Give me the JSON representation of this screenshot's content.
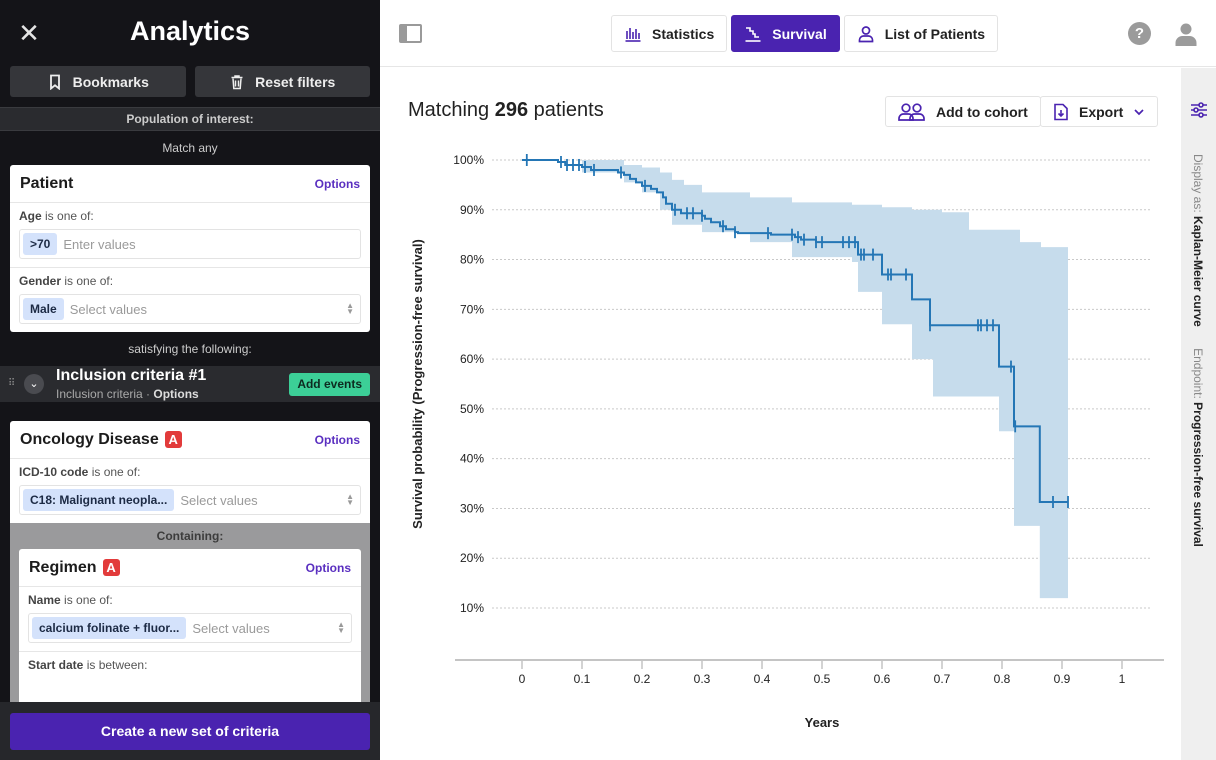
{
  "sidebar": {
    "title": "Analytics",
    "close_icon": "close-icon",
    "bookmarks_label": "Bookmarks",
    "reset_label": "Reset filters",
    "population_label": "Population of interest:",
    "match_label": "Match any",
    "patient_card": {
      "title": "Patient",
      "options": "Options",
      "age_label": "Age",
      "age_op": "is one of:",
      "age_chip": ">70",
      "age_placeholder": "Enter values",
      "gender_label": "Gender",
      "gender_op": "is one of:",
      "gender_chip": "Male",
      "gender_placeholder": "Select values"
    },
    "satisfying_label": "satisfying the following:",
    "inclusion": {
      "title": "Inclusion criteria #1",
      "subtitle": "Inclusion criteria",
      "separator": "·",
      "options": "Options",
      "add_events": "Add events"
    },
    "oncology_card": {
      "title": "Oncology Disease",
      "badge": "A",
      "options": "Options",
      "icd_label": "ICD-10 code",
      "icd_op": "is one of:",
      "icd_chip": "C18: Malignant neopla...",
      "icd_placeholder": "Select values",
      "containing": "Containing:"
    },
    "regimen_card": {
      "title": "Regimen",
      "badge": "A",
      "options": "Options",
      "name_label": "Name",
      "name_op": "is one of:",
      "name_chip": "calcium folinate + fluor...",
      "name_placeholder": "Select values",
      "start_label": "Start date",
      "start_op": "is between:"
    },
    "create_label": "Create a new set of criteria"
  },
  "topbar": {
    "tabs": [
      {
        "label": "Statistics",
        "icon": "bar-chart-icon",
        "active": false
      },
      {
        "label": "Survival",
        "icon": "survival-curve-icon",
        "active": true
      },
      {
        "label": "List of Patients",
        "icon": "person-icon",
        "active": false
      }
    ],
    "help": "?"
  },
  "main": {
    "title_prefix": "Matching",
    "count": "296",
    "title_suffix": "patients",
    "add_cohort": "Add to cohort",
    "export": "Export"
  },
  "rail": {
    "display_label": "Display as:",
    "display_value": "Kaplan-Meier curve",
    "endpoint_label": "Endpoint:",
    "endpoint_value": "Progression-free survival"
  },
  "colors": {
    "accent": "#4a23b0",
    "curve": "#2476b5",
    "ci": "#c6dcec",
    "success": "#3ccf97",
    "badge": "#e23b3b"
  },
  "chart_data": {
    "type": "line",
    "subtype": "kaplan-meier",
    "xlabel": "Years",
    "ylabel": "Survival probability (Progression-free survival)",
    "xlim": [
      -0.11,
      1.05
    ],
    "ylim": [
      0,
      1.02
    ],
    "xticks": [
      0,
      0.1,
      0.2,
      0.3,
      0.4,
      0.5,
      0.6,
      0.7,
      0.8,
      0.9,
      1
    ],
    "xtick_labels": [
      "0",
      "0.1",
      "0.2",
      "0.3",
      "0.4",
      "0.5",
      "0.6",
      "0.7",
      "0.8",
      "0.9",
      "1"
    ],
    "yticks": [
      0.1,
      0.2,
      0.3,
      0.4,
      0.5,
      0.6,
      0.7,
      0.8,
      0.9,
      1.0
    ],
    "ytick_labels": [
      "10%",
      "20%",
      "30%",
      "40%",
      "50%",
      "60%",
      "70%",
      "80%",
      "90%",
      "100%"
    ],
    "grid": "horizontal-dotted",
    "steps": [
      [
        0.0,
        1.0
      ],
      [
        0.06,
        0.996
      ],
      [
        0.072,
        0.99
      ],
      [
        0.1,
        0.986
      ],
      [
        0.115,
        0.98
      ],
      [
        0.16,
        0.975
      ],
      [
        0.17,
        0.97
      ],
      [
        0.18,
        0.962
      ],
      [
        0.19,
        0.955
      ],
      [
        0.2,
        0.948
      ],
      [
        0.215,
        0.942
      ],
      [
        0.225,
        0.935
      ],
      [
        0.235,
        0.925
      ],
      [
        0.24,
        0.912
      ],
      [
        0.25,
        0.9
      ],
      [
        0.265,
        0.893
      ],
      [
        0.3,
        0.888
      ],
      [
        0.305,
        0.882
      ],
      [
        0.315,
        0.875
      ],
      [
        0.33,
        0.867
      ],
      [
        0.34,
        0.861
      ],
      [
        0.355,
        0.855
      ],
      [
        0.36,
        0.853
      ],
      [
        0.415,
        0.85
      ],
      [
        0.455,
        0.845
      ],
      [
        0.465,
        0.84
      ],
      [
        0.49,
        0.835
      ],
      [
        0.56,
        0.81
      ],
      [
        0.6,
        0.77
      ],
      [
        0.65,
        0.72
      ],
      [
        0.68,
        0.668
      ],
      [
        0.795,
        0.585
      ],
      [
        0.82,
        0.465
      ],
      [
        0.863,
        0.313
      ],
      [
        0.91,
        0.313
      ]
    ],
    "ci_upper": [
      [
        0.0,
        1.0
      ],
      [
        0.1,
        1.0
      ],
      [
        0.17,
        0.99
      ],
      [
        0.2,
        0.985
      ],
      [
        0.23,
        0.975
      ],
      [
        0.25,
        0.96
      ],
      [
        0.27,
        0.95
      ],
      [
        0.3,
        0.935
      ],
      [
        0.38,
        0.925
      ],
      [
        0.45,
        0.915
      ],
      [
        0.55,
        0.91
      ],
      [
        0.6,
        0.905
      ],
      [
        0.65,
        0.9
      ],
      [
        0.7,
        0.895
      ],
      [
        0.745,
        0.86
      ],
      [
        0.79,
        0.86
      ],
      [
        0.83,
        0.835
      ],
      [
        0.865,
        0.825
      ],
      [
        0.91,
        0.825
      ]
    ],
    "ci_lower": [
      [
        0.0,
        1.0
      ],
      [
        0.1,
        0.975
      ],
      [
        0.17,
        0.955
      ],
      [
        0.2,
        0.935
      ],
      [
        0.23,
        0.9
      ],
      [
        0.25,
        0.87
      ],
      [
        0.3,
        0.855
      ],
      [
        0.38,
        0.835
      ],
      [
        0.45,
        0.805
      ],
      [
        0.55,
        0.795
      ],
      [
        0.56,
        0.735
      ],
      [
        0.6,
        0.67
      ],
      [
        0.65,
        0.6
      ],
      [
        0.685,
        0.525
      ],
      [
        0.795,
        0.455
      ],
      [
        0.82,
        0.265
      ],
      [
        0.863,
        0.12
      ],
      [
        0.91,
        0.12
      ]
    ],
    "censored": [
      0.008,
      0.065,
      0.075,
      0.085,
      0.095,
      0.105,
      0.12,
      0.165,
      0.205,
      0.255,
      0.275,
      0.285,
      0.3,
      0.335,
      0.355,
      0.41,
      0.45,
      0.46,
      0.47,
      0.49,
      0.5,
      0.535,
      0.545,
      0.555,
      0.565,
      0.57,
      0.585,
      0.61,
      0.615,
      0.64,
      0.68,
      0.76,
      0.765,
      0.775,
      0.785,
      0.815,
      0.822,
      0.885,
      0.91
    ]
  }
}
